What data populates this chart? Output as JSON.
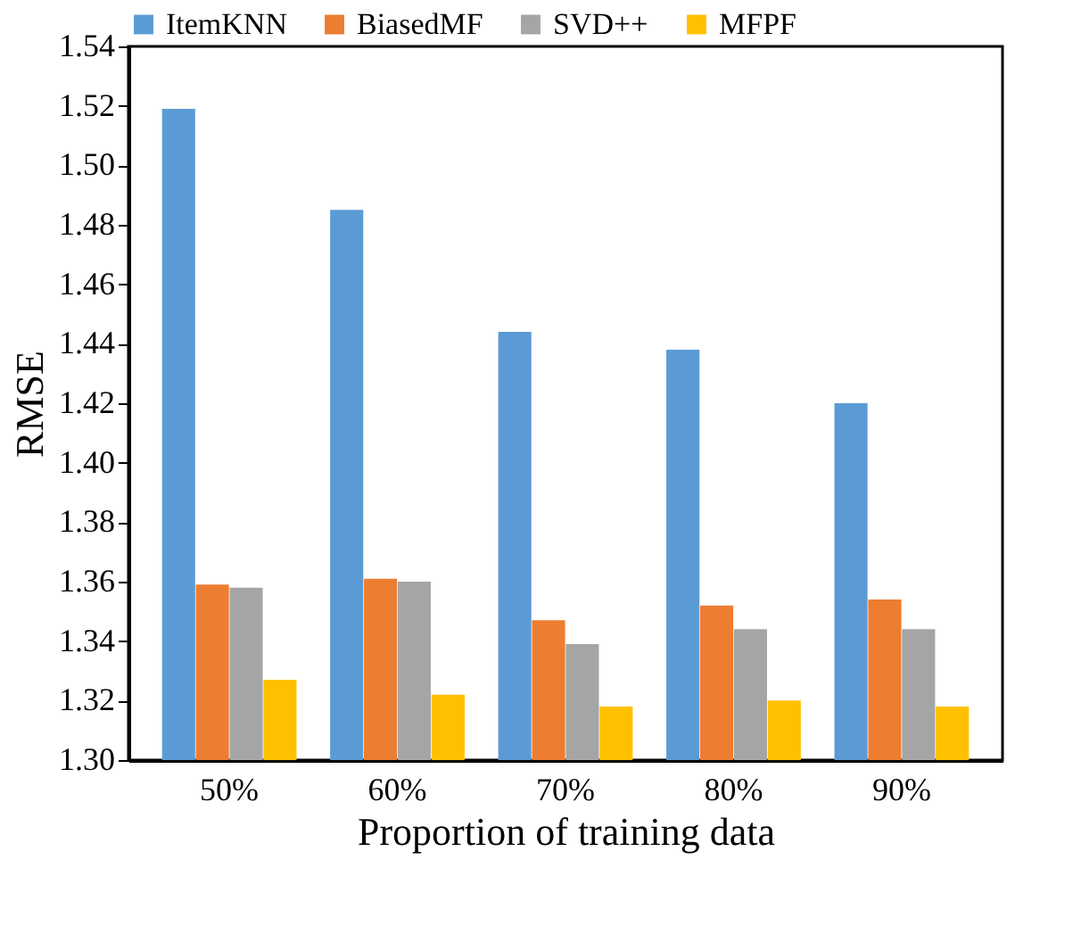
{
  "chart_data": {
    "type": "bar",
    "xlabel": "Proportion of training data",
    "ylabel": "RMSE",
    "categories": [
      "50%",
      "60%",
      "70%",
      "80%",
      "90%"
    ],
    "series": [
      {
        "name": "ItemKNN",
        "color": "#5b9bd5",
        "values": [
          1.519,
          1.485,
          1.444,
          1.438,
          1.42
        ]
      },
      {
        "name": "BiasedMF",
        "color": "#ed7d31",
        "values": [
          1.359,
          1.361,
          1.347,
          1.352,
          1.354
        ]
      },
      {
        "name": "SVD++",
        "color": "#a5a5a5",
        "values": [
          1.358,
          1.36,
          1.339,
          1.344,
          1.344
        ]
      },
      {
        "name": "MFPF",
        "color": "#ffc000",
        "values": [
          1.327,
          1.322,
          1.318,
          1.32,
          1.318
        ]
      }
    ],
    "ylim": [
      1.3,
      1.54
    ],
    "yticks": [
      {
        "value": 1.3,
        "label": "1.30"
      },
      1.32,
      1.34,
      1.36,
      1.38,
      {
        "value": 1.4,
        "label": "1.40"
      },
      1.42,
      1.44,
      1.46,
      1.48,
      {
        "value": 1.5,
        "label": "1.50"
      },
      1.52,
      1.54
    ],
    "grid": false,
    "legend": "top"
  }
}
